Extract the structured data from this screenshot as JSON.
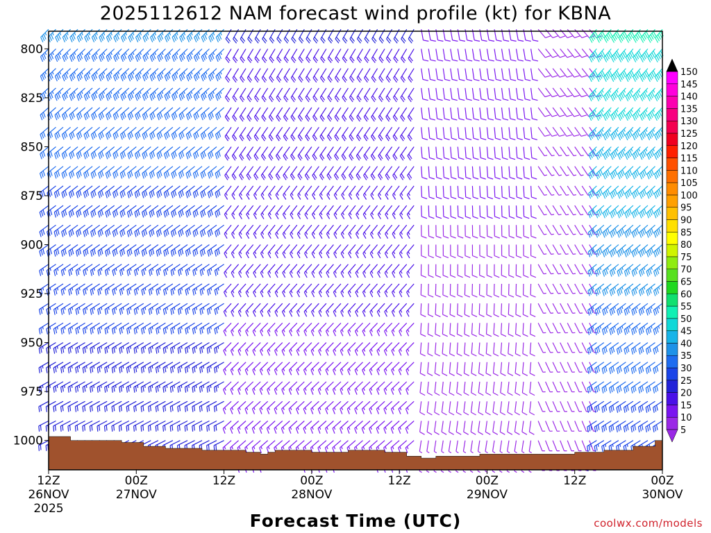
{
  "chart_data": {
    "type": "wind-barb time-height profile",
    "title": "2025112612 NAM forecast wind profile (kt) for KBNA",
    "xlabel": "Forecast Time (UTC)",
    "credit": "coolwx.com/models",
    "x_ticks": [
      {
        "hour": 0,
        "line1": "12Z",
        "line2": "26NOV",
        "line3": "2025"
      },
      {
        "hour": 12,
        "line1": "00Z",
        "line2": "27NOV",
        "line3": ""
      },
      {
        "hour": 24,
        "line1": "12Z",
        "line2": "",
        "line3": ""
      },
      {
        "hour": 36,
        "line1": "00Z",
        "line2": "28NOV",
        "line3": ""
      },
      {
        "hour": 48,
        "line1": "12Z",
        "line2": "",
        "line3": ""
      },
      {
        "hour": 60,
        "line1": "00Z",
        "line2": "29NOV",
        "line3": ""
      },
      {
        "hour": 72,
        "line1": "12Z",
        "line2": "",
        "line3": ""
      },
      {
        "hour": 84,
        "line1": "00Z",
        "line2": "30NOV",
        "line3": ""
      }
    ],
    "y_ticks": [
      800,
      825,
      850,
      875,
      900,
      925,
      950,
      975,
      1000
    ],
    "y_range_hpa": [
      791,
      1015
    ],
    "x_range_hours": [
      0,
      84
    ],
    "colorbar_kt": [
      5,
      10,
      15,
      20,
      25,
      30,
      35,
      40,
      45,
      50,
      55,
      60,
      65,
      70,
      75,
      80,
      85,
      90,
      95,
      100,
      105,
      110,
      115,
      120,
      125,
      130,
      135,
      140,
      145,
      150
    ],
    "colorbar_colors": [
      "#9a28e6",
      "#7a14f0",
      "#4a10e8",
      "#2222d8",
      "#1a44e8",
      "#1e6cf0",
      "#1e92e8",
      "#18b4e8",
      "#10d8d8",
      "#10f0b4",
      "#10e070",
      "#20d820",
      "#58e020",
      "#90ec10",
      "#d0f400",
      "#ffff00",
      "#ffe000",
      "#ffc000",
      "#ffa000",
      "#ff8c00",
      "#ff7000",
      "#ff5000",
      "#ff2000",
      "#f00020",
      "#f40050",
      "#f80080",
      "#fc00b0",
      "#ff00dc",
      "#ff00ff",
      "#ff00ff"
    ],
    "terrain_color": "#a0522d",
    "surface_pressure_hpa": [
      {
        "hour": 0,
        "p": 998
      },
      {
        "hour": 3,
        "p": 1000
      },
      {
        "hour": 10,
        "p": 1001
      },
      {
        "hour": 13,
        "p": 1003
      },
      {
        "hour": 16,
        "p": 1004
      },
      {
        "hour": 21,
        "p": 1005
      },
      {
        "hour": 27,
        "p": 1006
      },
      {
        "hour": 29,
        "p": 1007
      },
      {
        "hour": 30,
        "p": 1006
      },
      {
        "hour": 31,
        "p": 1005
      },
      {
        "hour": 36,
        "p": 1006
      },
      {
        "hour": 41,
        "p": 1005
      },
      {
        "hour": 46,
        "p": 1006
      },
      {
        "hour": 49,
        "p": 1008
      },
      {
        "hour": 51,
        "p": 1009
      },
      {
        "hour": 53,
        "p": 1008
      },
      {
        "hour": 59,
        "p": 1007
      },
      {
        "hour": 67,
        "p": 1007
      },
      {
        "hour": 72,
        "p": 1006
      },
      {
        "hour": 76,
        "p": 1005
      },
      {
        "hour": 80,
        "p": 1003
      },
      {
        "hour": 83,
        "p": 1000
      },
      {
        "hour": 84,
        "p": 999
      }
    ],
    "wind_levels_hpa": [
      790,
      800,
      810,
      820,
      830,
      840,
      850,
      860,
      870,
      880,
      890,
      900,
      910,
      920,
      930,
      940,
      950,
      960,
      970,
      980,
      990,
      1000,
      1010
    ],
    "wind_time_step_hours": 1,
    "wind_regimes": [
      {
        "hours": [
          0,
          24
        ],
        "direction_deg": 235,
        "speed_kt_upper": 35,
        "speed_kt_lower": 20
      },
      {
        "hours": [
          24,
          50
        ],
        "direction_deg": 220,
        "speed_kt_upper": 20,
        "speed_kt_lower": 12
      },
      {
        "hours": [
          50,
          66
        ],
        "direction_deg": 180,
        "speed_kt_upper": 12,
        "speed_kt_lower": 7
      },
      {
        "hours": [
          66,
          74
        ],
        "direction_deg": 150,
        "speed_kt_upper": 8,
        "speed_kt_lower": 6
      },
      {
        "hours": [
          74,
          84
        ],
        "direction_deg": 230,
        "speed_kt_upper": 50,
        "speed_kt_lower": 25
      }
    ]
  }
}
